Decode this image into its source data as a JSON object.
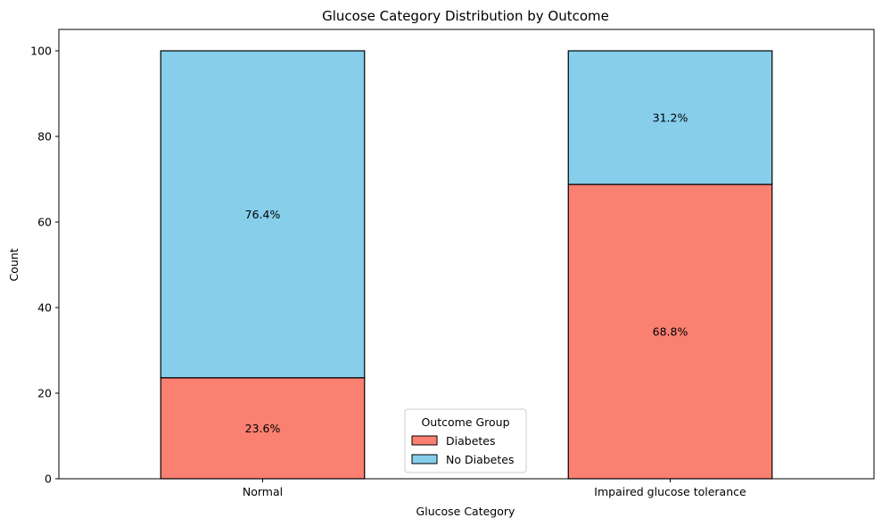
{
  "chart_data": {
    "type": "bar",
    "stacked": true,
    "title": "Glucose Category Distribution by Outcome",
    "xlabel": "Glucose Category",
    "ylabel": "Count",
    "categories": [
      "Normal",
      "Impaired glucose tolerance"
    ],
    "series": [
      {
        "name": "Diabetes",
        "color": "#fa8072",
        "values": [
          23.6,
          68.8
        ],
        "labels": [
          "23.6%",
          "68.8%"
        ]
      },
      {
        "name": "No Diabetes",
        "color": "#87ceeb",
        "values": [
          76.4,
          31.2
        ],
        "labels": [
          "76.4%",
          "31.2%"
        ]
      }
    ],
    "ylim": [
      0,
      105
    ],
    "yticks": [
      0,
      20,
      40,
      60,
      80,
      100
    ],
    "grid": false,
    "legend": {
      "title": "Outcome Group",
      "placement": "lower-center"
    }
  }
}
